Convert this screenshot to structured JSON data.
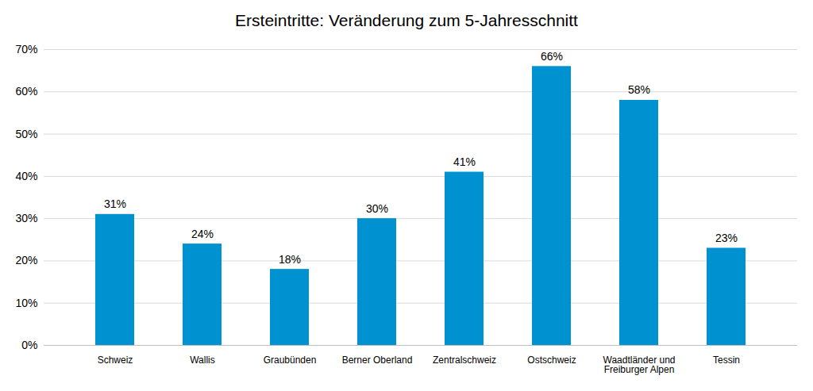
{
  "chart_data": {
    "type": "bar",
    "title": "Ersteintritte: Veränderung zum 5-Jahresschnitt",
    "categories": [
      "Schweiz",
      "Wallis",
      "Graubünden",
      "Berner Oberland",
      "Zentralschweiz",
      "Ostschweiz",
      "Waadtländer und Freiburger Alpen",
      "Tessin"
    ],
    "values": [
      31,
      24,
      18,
      30,
      41,
      66,
      58,
      23
    ],
    "value_labels": [
      "31%",
      "24%",
      "18%",
      "30%",
      "41%",
      "66%",
      "58%",
      "23%"
    ],
    "data_labels": true,
    "color": "#0091d0",
    "ylim": [
      0,
      70
    ],
    "yticks": [
      {
        "value": 0,
        "label": "0%"
      },
      {
        "value": 10,
        "label": "10%"
      },
      {
        "value": 20,
        "label": "20%"
      },
      {
        "value": 30,
        "label": "30%"
      },
      {
        "value": 40,
        "label": "40%"
      },
      {
        "value": 50,
        "label": "50%"
      },
      {
        "value": 60,
        "label": "60%"
      },
      {
        "value": 70,
        "label": "70%"
      }
    ],
    "grid": true
  }
}
